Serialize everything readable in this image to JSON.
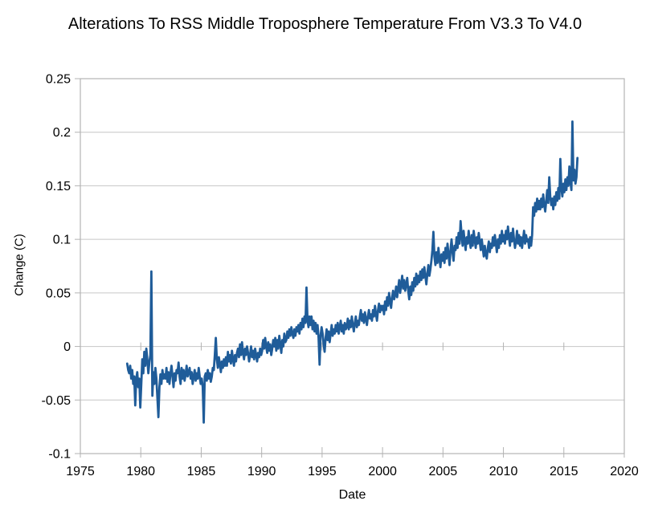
{
  "title": "Alterations To RSS Middle Troposphere Temperature From V3.3 To V4.0",
  "chart_data": {
    "type": "line",
    "title": "Alterations To RSS Middle Troposphere Temperature From V3.3 To V4.0",
    "xlabel": "Date",
    "ylabel": "Change (C)",
    "xlim": [
      1975,
      2020
    ],
    "ylim": [
      -0.1,
      0.25
    ],
    "x_tick_values": [
      1975,
      1980,
      1985,
      1990,
      1995,
      2000,
      2005,
      2010,
      2015,
      2020
    ],
    "x_tick_labels": [
      "1975",
      "1980",
      "1985",
      "1990",
      "1995",
      "2000",
      "2005",
      "2010",
      "2015",
      "2020"
    ],
    "y_tick_values": [
      0.25,
      0.2,
      0.15,
      0.1,
      0.05,
      0,
      -0.05,
      -0.1
    ],
    "y_tick_labels": [
      "0.25",
      "0.2",
      "0.15",
      "0.1",
      "0.05",
      "0",
      "-0.05",
      "-0.1"
    ],
    "grid": "horizontal",
    "legend": "none",
    "line_color": "#1f5c99",
    "grid_color": "#c6c6c6",
    "border_color": "#b3b3b3",
    "series": [
      {
        "x_start": 1978.875,
        "x_step_years": 0.0833333,
        "values": [
          -0.016,
          -0.022,
          -0.025,
          -0.018,
          -0.03,
          -0.022,
          -0.035,
          -0.028,
          -0.055,
          -0.03,
          -0.024,
          -0.038,
          -0.03,
          -0.057,
          -0.035,
          -0.012,
          -0.025,
          -0.005,
          -0.018,
          -0.002,
          -0.012,
          -0.025,
          -0.015,
          -0.008,
          0.07,
          -0.046,
          -0.024,
          -0.035,
          -0.02,
          -0.03,
          -0.048,
          -0.066,
          -0.038,
          -0.026,
          -0.035,
          -0.022,
          -0.03,
          -0.026,
          -0.03,
          -0.02,
          -0.033,
          -0.024,
          -0.035,
          -0.025,
          -0.018,
          -0.028,
          -0.038,
          -0.025,
          -0.032,
          -0.022,
          -0.025,
          -0.015,
          -0.028,
          -0.035,
          -0.02,
          -0.03,
          -0.022,
          -0.032,
          -0.026,
          -0.018,
          -0.028,
          -0.024,
          -0.02,
          -0.03,
          -0.024,
          -0.035,
          -0.028,
          -0.022,
          -0.032,
          -0.025,
          -0.03,
          -0.02,
          -0.028,
          -0.035,
          -0.03,
          -0.038,
          -0.071,
          -0.028,
          -0.025,
          -0.032,
          -0.022,
          -0.03,
          -0.025,
          -0.033,
          -0.028,
          -0.02,
          -0.022,
          -0.008,
          0.008,
          -0.012,
          -0.02,
          -0.01,
          -0.016,
          -0.024,
          -0.014,
          -0.02,
          -0.012,
          -0.018,
          -0.01,
          -0.018,
          -0.005,
          -0.014,
          -0.008,
          -0.016,
          -0.004,
          -0.012,
          -0.018,
          -0.008,
          -0.014,
          -0.006,
          -0.002,
          -0.01,
          0.002,
          -0.008,
          0.004,
          -0.006,
          -0.012,
          -0.002,
          -0.008,
          0.0,
          -0.006,
          -0.014,
          -0.008,
          0.0,
          -0.01,
          -0.004,
          -0.012,
          -0.002,
          -0.008,
          -0.014,
          -0.006,
          -0.01,
          -0.002,
          -0.008,
          -0.004,
          0.006,
          -0.002,
          0.008,
          0.0,
          -0.006,
          0.004,
          -0.004,
          0.002,
          -0.008,
          -0.002,
          0.006,
          0.0,
          0.008,
          -0.004,
          0.006,
          -0.002,
          0.01,
          0.002,
          -0.006,
          0.006,
          0.0,
          0.012,
          0.004,
          0.006,
          0.014,
          0.008,
          0.016,
          0.01,
          0.018,
          0.012,
          0.008,
          0.016,
          0.01,
          0.018,
          0.014,
          0.02,
          0.012,
          0.022,
          0.016,
          0.026,
          0.018,
          0.028,
          0.022,
          0.055,
          0.025,
          0.018,
          0.028,
          0.02,
          0.028,
          0.016,
          0.024,
          0.014,
          0.022,
          0.012,
          0.02,
          0.008,
          -0.017,
          0.01,
          0.018,
          0.012,
          0.002,
          -0.005,
          0.008,
          0.016,
          0.006,
          0.014,
          0.004,
          0.012,
          0.02,
          0.01,
          0.016,
          0.012,
          0.02,
          0.014,
          0.022,
          0.012,
          0.018,
          0.024,
          0.014,
          0.02,
          0.012,
          0.022,
          0.016,
          0.018,
          0.026,
          0.016,
          0.024,
          0.018,
          0.028,
          0.02,
          0.014,
          0.022,
          0.028,
          0.018,
          0.024,
          0.02,
          0.028,
          0.034,
          0.024,
          0.03,
          0.022,
          0.032,
          0.026,
          0.02,
          0.028,
          0.034,
          0.026,
          0.03,
          0.024,
          0.034,
          0.028,
          0.038,
          0.03,
          0.024,
          0.034,
          0.04,
          0.032,
          0.038,
          0.034,
          0.038,
          0.03,
          0.042,
          0.034,
          0.046,
          0.038,
          0.05,
          0.042,
          0.036,
          0.046,
          0.052,
          0.044,
          0.048,
          0.056,
          0.046,
          0.054,
          0.062,
          0.05,
          0.058,
          0.066,
          0.054,
          0.062,
          0.052,
          0.058,
          0.064,
          0.052,
          0.044,
          0.056,
          0.048,
          0.06,
          0.052,
          0.064,
          0.056,
          0.068,
          0.058,
          0.066,
          0.06,
          0.07,
          0.062,
          0.072,
          0.064,
          0.074,
          0.066,
          0.058,
          0.068,
          0.076,
          0.066,
          0.072,
          0.08,
          0.09,
          0.107,
          0.084,
          0.076,
          0.088,
          0.078,
          0.092,
          0.082,
          0.074,
          0.086,
          0.08,
          0.088,
          0.078,
          0.092,
          0.082,
          0.096,
          0.086,
          0.076,
          0.09,
          0.1,
          0.088,
          0.08,
          0.094,
          0.09,
          0.102,
          0.092,
          0.106,
          0.096,
          0.117,
          0.104,
          0.094,
          0.108,
          0.098,
          0.09,
          0.102,
          0.096,
          0.108,
          0.098,
          0.092,
          0.104,
          0.094,
          0.108,
          0.1,
          0.092,
          0.102,
          0.096,
          0.106,
          0.098,
          0.09,
          0.1,
          0.092,
          0.084,
          0.094,
          0.086,
          0.082,
          0.092,
          0.098,
          0.088,
          0.096,
          0.092,
          0.102,
          0.094,
          0.104,
          0.096,
          0.088,
          0.1,
          0.092,
          0.104,
          0.096,
          0.108,
          0.098,
          0.104,
          0.096,
          0.108,
          0.1,
          0.112,
          0.102,
          0.094,
          0.106,
          0.098,
          0.11,
          0.1,
          0.092,
          0.098,
          0.108,
          0.096,
          0.104,
          0.094,
          0.102,
          0.092,
          0.1,
          0.108,
          0.096,
          0.104,
          0.098,
          0.1,
          0.092,
          0.102,
          0.094,
          0.104,
          0.13,
          0.122,
          0.134,
          0.126,
          0.138,
          0.128,
          0.136,
          0.128,
          0.138,
          0.13,
          0.142,
          0.132,
          0.126,
          0.136,
          0.146,
          0.134,
          0.158,
          0.14,
          0.132,
          0.138,
          0.128,
          0.14,
          0.132,
          0.144,
          0.136,
          0.148,
          0.138,
          0.175,
          0.148,
          0.14,
          0.152,
          0.144,
          0.156,
          0.146,
          0.158,
          0.15,
          0.168,
          0.154,
          0.146,
          0.21,
          0.155,
          0.165,
          0.152,
          0.158,
          0.176
        ]
      }
    ]
  }
}
